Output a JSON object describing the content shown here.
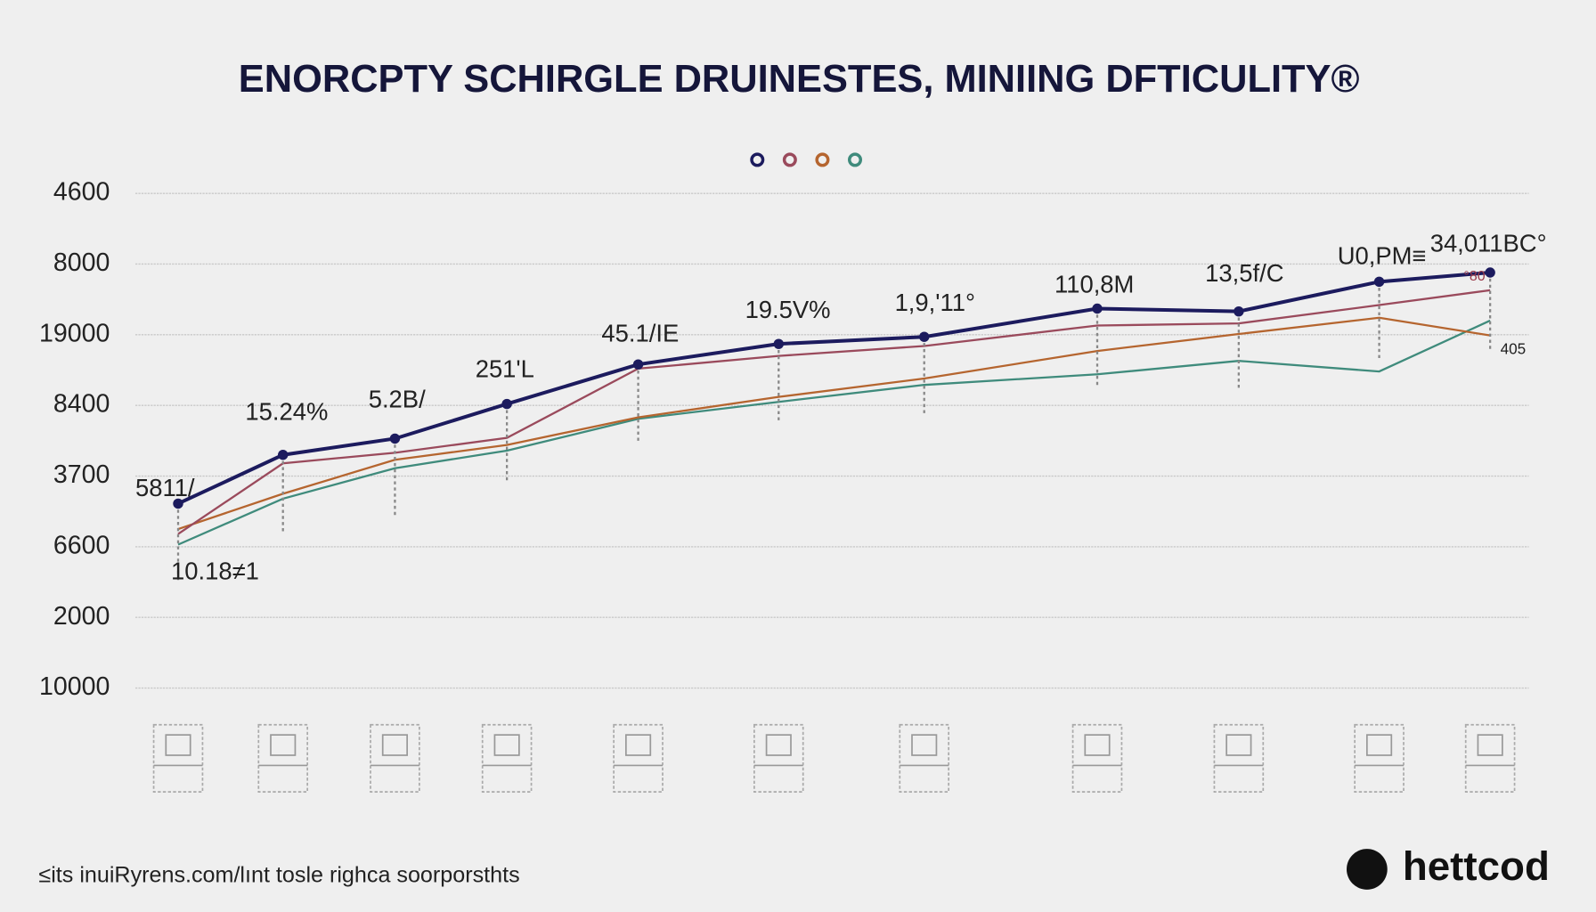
{
  "chart_data": {
    "type": "line",
    "title": "ENORCPTY SCHIRGLE DRUINESTES, MINIING DFTICULITY®",
    "categories": [
      null,
      null,
      null,
      null,
      null,
      null,
      null,
      null,
      null,
      null,
      null
    ],
    "series": [
      {
        "color": "#1c1b5e",
        "values": [
          2.61,
          3.3,
          3.53,
          4.02,
          4.58,
          4.87,
          4.97,
          5.37,
          5.33,
          5.75,
          5.88
        ]
      },
      {
        "color": "#9a4a5c",
        "values": [
          2.18,
          3.18,
          3.33,
          3.54,
          4.52,
          4.7,
          4.84,
          5.13,
          5.16,
          5.42,
          5.63
        ]
      },
      {
        "color": "#b5652f",
        "values": [
          2.25,
          2.75,
          3.23,
          3.44,
          3.83,
          4.12,
          4.38,
          4.77,
          5.01,
          5.24,
          4.99
        ]
      },
      {
        "color": "#3f8b7c",
        "values": [
          2.03,
          2.68,
          3.11,
          3.36,
          3.81,
          4.05,
          4.29,
          4.44,
          4.63,
          4.48,
          5.2
        ]
      }
    ],
    "ylim": [
      0,
      7
    ],
    "yticks": [
      {
        "value": 7,
        "label": "4600"
      },
      {
        "value": 6,
        "label": "8000"
      },
      {
        "value": 5,
        "label": "19000"
      },
      {
        "value": 4,
        "label": "8400"
      },
      {
        "value": 3,
        "label": "3700"
      },
      {
        "value": 2,
        "label": "6600"
      },
      {
        "value": 1,
        "label": "2000"
      },
      {
        "value": 0,
        "label": "10000"
      }
    ],
    "grid": true,
    "annotations": [
      "5811/",
      "15.24%",
      "5.2B/",
      "251'L",
      "45.1/IE",
      "19.5V%",
      "1,9,'11°",
      "110,8M",
      "13,5f/C",
      "U0,PM≡",
      "34,011BC°",
      "10.18≠1",
      "405",
      "°80"
    ],
    "footer": "≤its inuiRyrens.com/lınt tosle righca soorporsthts",
    "logo": "hettcod"
  }
}
